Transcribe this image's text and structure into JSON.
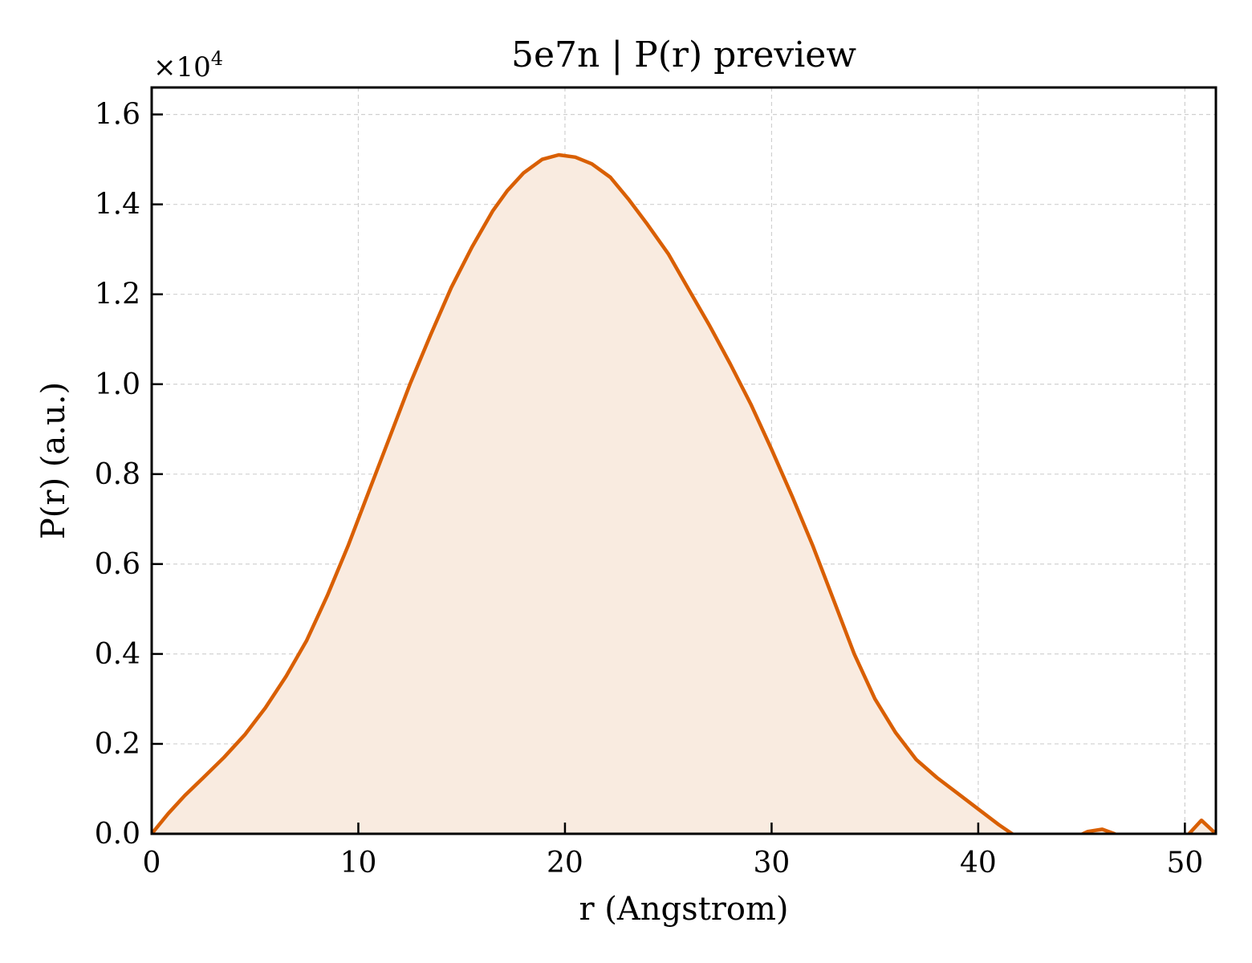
{
  "chart_data": {
    "type": "area",
    "title": "5e7n | P(r) preview",
    "xlabel": "r (Angstrom)",
    "ylabel": "P(r) (a.u.)",
    "y_multiplier": "×10",
    "y_multiplier_exp": "4",
    "xlim": [
      0,
      51.5
    ],
    "ylim": [
      0,
      1.66
    ],
    "x_ticks": [
      0,
      10,
      20,
      30,
      40,
      50
    ],
    "x_tick_labels": [
      "0",
      "10",
      "20",
      "30",
      "40",
      "50"
    ],
    "y_ticks": [
      0.0,
      0.2,
      0.4,
      0.6,
      0.8,
      1.0,
      1.2,
      1.4,
      1.6
    ],
    "y_tick_labels": [
      "0.0",
      "0.2",
      "0.4",
      "0.6",
      "0.8",
      "1.0",
      "1.2",
      "1.4",
      "1.6"
    ],
    "grid": true,
    "line_color": "#d95f02",
    "fill_color": "#f9ebe0",
    "series": [
      {
        "x": [
          0,
          0.8,
          1.6,
          2.5,
          3.5,
          4.5,
          5.5,
          6.5,
          7.5,
          8.5,
          9.5,
          10.5,
          11.5,
          12.5,
          13.5,
          14.5,
          15.5,
          16.5,
          17.2,
          18.0,
          18.9,
          19.7,
          20.5,
          21.3,
          22.2,
          23.1,
          24.0,
          25.0,
          26.0,
          27.0,
          28.0,
          29.0,
          30.0,
          31.0,
          32.0,
          33.0,
          34.0,
          35.0,
          36.0,
          37.0,
          38.0,
          39.0,
          40.0,
          41.0,
          41.8,
          42.5,
          43.2,
          43.9,
          44.6,
          45.3,
          46.0,
          46.6,
          47.3,
          48.1,
          48.8,
          49.5,
          50.2,
          50.8,
          51.5
        ],
        "y": [
          0.0,
          0.045,
          0.085,
          0.125,
          0.17,
          0.22,
          0.28,
          0.35,
          0.43,
          0.53,
          0.64,
          0.76,
          0.88,
          1.0,
          1.11,
          1.215,
          1.305,
          1.385,
          1.43,
          1.47,
          1.5,
          1.51,
          1.505,
          1.49,
          1.46,
          1.41,
          1.355,
          1.29,
          1.21,
          1.13,
          1.045,
          0.955,
          0.855,
          0.75,
          0.64,
          0.52,
          0.4,
          0.3,
          0.225,
          0.165,
          0.125,
          0.09,
          0.055,
          0.02,
          -0.005,
          -0.025,
          -0.03,
          -0.025,
          -0.01,
          0.005,
          0.01,
          0.0,
          -0.02,
          -0.04,
          -0.045,
          -0.035,
          0.0,
          0.03,
          0.0
        ]
      }
    ]
  }
}
